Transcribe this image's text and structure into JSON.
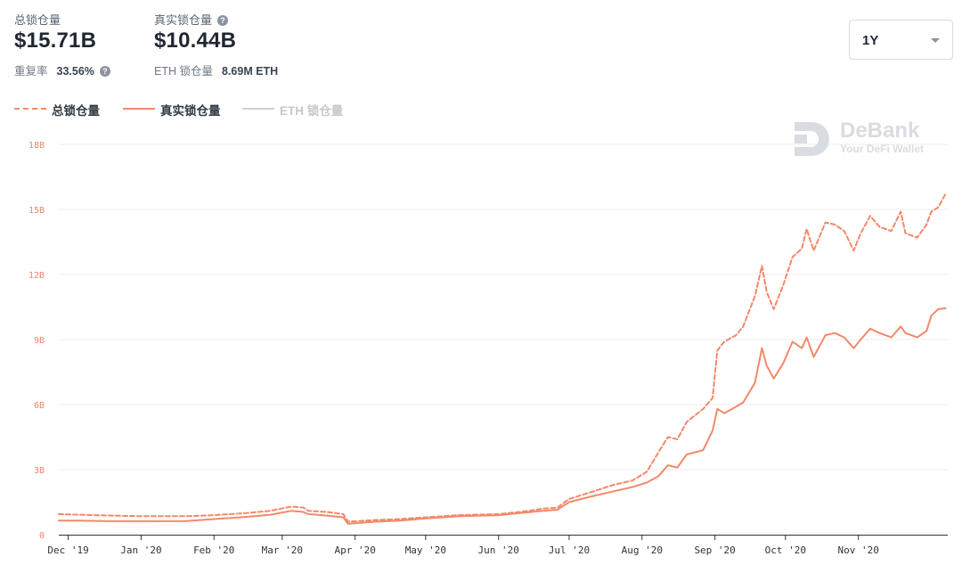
{
  "stats": {
    "total_label": "总锁仓量",
    "total_value": "$15.71B",
    "real_label": "真实锁仓量",
    "real_value": "$10.44B",
    "reuse_label": "重复率",
    "reuse_value": "33.56%",
    "eth_label": "ETH 锁仓量",
    "eth_value": "8.69M ETH"
  },
  "range_select": {
    "value": "1Y"
  },
  "legend": [
    {
      "label": "总锁仓量",
      "style": "dashed",
      "color": "#f2896a"
    },
    {
      "label": "真实锁仓量",
      "style": "solid",
      "color": "#f2896a"
    },
    {
      "label": "ETH 锁仓量",
      "style": "solid",
      "color": "#d0d0d0",
      "disabled": true
    }
  ],
  "watermark": {
    "brand": "DeBank",
    "tagline": "Your DeFi Wallet"
  },
  "chart_data": {
    "type": "line",
    "x_ticks": [
      "Dec '19",
      "Jan '20",
      "Feb '20",
      "Mar '20",
      "Apr '20",
      "May '20",
      "Jun '20",
      "Jul '20",
      "Aug '20",
      "Sep '20",
      "Oct '20",
      "Nov '20"
    ],
    "y_ticks": [
      "0",
      "3B",
      "6B",
      "9B",
      "12B",
      "15B",
      "18B"
    ],
    "ylim": [
      0,
      18
    ],
    "grid": true,
    "legend_position": "top-left",
    "series": [
      {
        "name": "总锁仓量",
        "style": "dashed",
        "color": "#f2896a",
        "points": [
          [
            "2019-11-27",
            0.95
          ],
          [
            "2019-12-05",
            0.92
          ],
          [
            "2019-12-20",
            0.88
          ],
          [
            "2020-01-01",
            0.85
          ],
          [
            "2020-01-20",
            0.85
          ],
          [
            "2020-02-01",
            0.9
          ],
          [
            "2020-02-15",
            1.0
          ],
          [
            "2020-02-25",
            1.1
          ],
          [
            "2020-03-05",
            1.3
          ],
          [
            "2020-03-10",
            1.25
          ],
          [
            "2020-03-12",
            1.1
          ],
          [
            "2020-03-20",
            1.05
          ],
          [
            "2020-03-27",
            0.95
          ],
          [
            "2020-03-29",
            0.6
          ],
          [
            "2020-04-10",
            0.68
          ],
          [
            "2020-04-20",
            0.72
          ],
          [
            "2020-05-01",
            0.8
          ],
          [
            "2020-05-15",
            0.9
          ],
          [
            "2020-06-01",
            0.95
          ],
          [
            "2020-06-10",
            1.05
          ],
          [
            "2020-06-20",
            1.2
          ],
          [
            "2020-06-26",
            1.25
          ],
          [
            "2020-07-01",
            1.65
          ],
          [
            "2020-07-10",
            1.95
          ],
          [
            "2020-07-20",
            2.3
          ],
          [
            "2020-07-28",
            2.5
          ],
          [
            "2020-08-03",
            2.9
          ],
          [
            "2020-08-08",
            3.8
          ],
          [
            "2020-08-12",
            4.5
          ],
          [
            "2020-08-16",
            4.4
          ],
          [
            "2020-08-20",
            5.2
          ],
          [
            "2020-08-27",
            5.8
          ],
          [
            "2020-08-31",
            6.3
          ],
          [
            "2020-09-02",
            8.5
          ],
          [
            "2020-09-05",
            8.9
          ],
          [
            "2020-09-10",
            9.2
          ],
          [
            "2020-09-13",
            9.6
          ],
          [
            "2020-09-18",
            11.0
          ],
          [
            "2020-09-21",
            12.4
          ],
          [
            "2020-09-23",
            11.2
          ],
          [
            "2020-09-26",
            10.4
          ],
          [
            "2020-09-30",
            11.5
          ],
          [
            "2020-10-04",
            12.8
          ],
          [
            "2020-10-08",
            13.2
          ],
          [
            "2020-10-10",
            14.1
          ],
          [
            "2020-10-13",
            13.1
          ],
          [
            "2020-10-18",
            14.4
          ],
          [
            "2020-10-22",
            14.3
          ],
          [
            "2020-10-26",
            14.0
          ],
          [
            "2020-10-30",
            13.1
          ],
          [
            "2020-11-02",
            13.9
          ],
          [
            "2020-11-06",
            14.7
          ],
          [
            "2020-11-10",
            14.2
          ],
          [
            "2020-11-15",
            14.0
          ],
          [
            "2020-11-19",
            14.9
          ],
          [
            "2020-11-21",
            13.9
          ],
          [
            "2020-11-26",
            13.7
          ],
          [
            "2020-11-30",
            14.3
          ],
          [
            "2020-12-02",
            14.9
          ],
          [
            "2020-12-05",
            15.1
          ],
          [
            "2020-12-08",
            15.71
          ]
        ]
      },
      {
        "name": "真实锁仓量",
        "style": "solid",
        "color": "#f2896a",
        "points": [
          [
            "2019-11-27",
            0.65
          ],
          [
            "2019-12-05",
            0.65
          ],
          [
            "2019-12-20",
            0.62
          ],
          [
            "2020-01-01",
            0.62
          ],
          [
            "2020-01-20",
            0.63
          ],
          [
            "2020-02-01",
            0.72
          ],
          [
            "2020-02-15",
            0.82
          ],
          [
            "2020-02-25",
            0.92
          ],
          [
            "2020-03-05",
            1.1
          ],
          [
            "2020-03-10",
            1.05
          ],
          [
            "2020-03-12",
            0.95
          ],
          [
            "2020-03-20",
            0.88
          ],
          [
            "2020-03-27",
            0.8
          ],
          [
            "2020-03-29",
            0.5
          ],
          [
            "2020-04-10",
            0.6
          ],
          [
            "2020-04-20",
            0.65
          ],
          [
            "2020-05-01",
            0.75
          ],
          [
            "2020-05-15",
            0.85
          ],
          [
            "2020-06-01",
            0.9
          ],
          [
            "2020-06-10",
            1.0
          ],
          [
            "2020-06-20",
            1.1
          ],
          [
            "2020-06-26",
            1.15
          ],
          [
            "2020-07-01",
            1.5
          ],
          [
            "2020-07-10",
            1.75
          ],
          [
            "2020-07-20",
            2.0
          ],
          [
            "2020-07-28",
            2.2
          ],
          [
            "2020-08-03",
            2.4
          ],
          [
            "2020-08-08",
            2.7
          ],
          [
            "2020-08-12",
            3.2
          ],
          [
            "2020-08-16",
            3.1
          ],
          [
            "2020-08-20",
            3.7
          ],
          [
            "2020-08-27",
            3.9
          ],
          [
            "2020-08-31",
            4.8
          ],
          [
            "2020-09-02",
            5.8
          ],
          [
            "2020-09-05",
            5.6
          ],
          [
            "2020-09-10",
            5.9
          ],
          [
            "2020-09-13",
            6.1
          ],
          [
            "2020-09-18",
            7.0
          ],
          [
            "2020-09-21",
            8.6
          ],
          [
            "2020-09-23",
            7.8
          ],
          [
            "2020-09-26",
            7.2
          ],
          [
            "2020-09-30",
            7.9
          ],
          [
            "2020-10-04",
            8.9
          ],
          [
            "2020-10-08",
            8.6
          ],
          [
            "2020-10-10",
            9.1
          ],
          [
            "2020-10-13",
            8.2
          ],
          [
            "2020-10-18",
            9.2
          ],
          [
            "2020-10-22",
            9.3
          ],
          [
            "2020-10-26",
            9.1
          ],
          [
            "2020-10-30",
            8.6
          ],
          [
            "2020-11-02",
            9.0
          ],
          [
            "2020-11-06",
            9.5
          ],
          [
            "2020-11-10",
            9.3
          ],
          [
            "2020-11-15",
            9.1
          ],
          [
            "2020-11-19",
            9.6
          ],
          [
            "2020-11-21",
            9.3
          ],
          [
            "2020-11-26",
            9.1
          ],
          [
            "2020-11-30",
            9.4
          ],
          [
            "2020-12-02",
            10.1
          ],
          [
            "2020-12-05",
            10.4
          ],
          [
            "2020-12-08",
            10.44
          ]
        ]
      }
    ]
  }
}
